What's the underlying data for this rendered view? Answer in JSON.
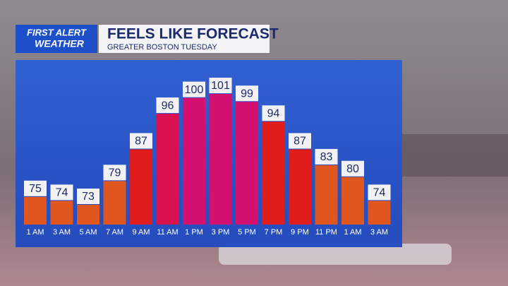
{
  "chart_data": {
    "type": "bar",
    "logo": [
      "FIRST ALERT",
      "WEATHER"
    ],
    "title": "FEELS LIKE FORECAST",
    "subtitle": "GREATER BOSTON TUESDAY",
    "categories": [
      "1 AM",
      "3 AM",
      "5 AM",
      "7 AM",
      "9 AM",
      "11 AM",
      "1 PM",
      "3 PM",
      "5 PM",
      "7 PM",
      "9 PM",
      "11 PM",
      "1 AM",
      "3 AM"
    ],
    "values": [
      75,
      74,
      73,
      79,
      87,
      96,
      100,
      101,
      99,
      94,
      87,
      83,
      80,
      74
    ],
    "colors": [
      "#e0561f",
      "#e0561f",
      "#e0561f",
      "#e0561f",
      "#e01c1c",
      "#d8124e",
      "#d41070",
      "#d41070",
      "#d41070",
      "#e01c1c",
      "#e01c1c",
      "#e0561f",
      "#e0561f",
      "#e0561f"
    ]
  }
}
